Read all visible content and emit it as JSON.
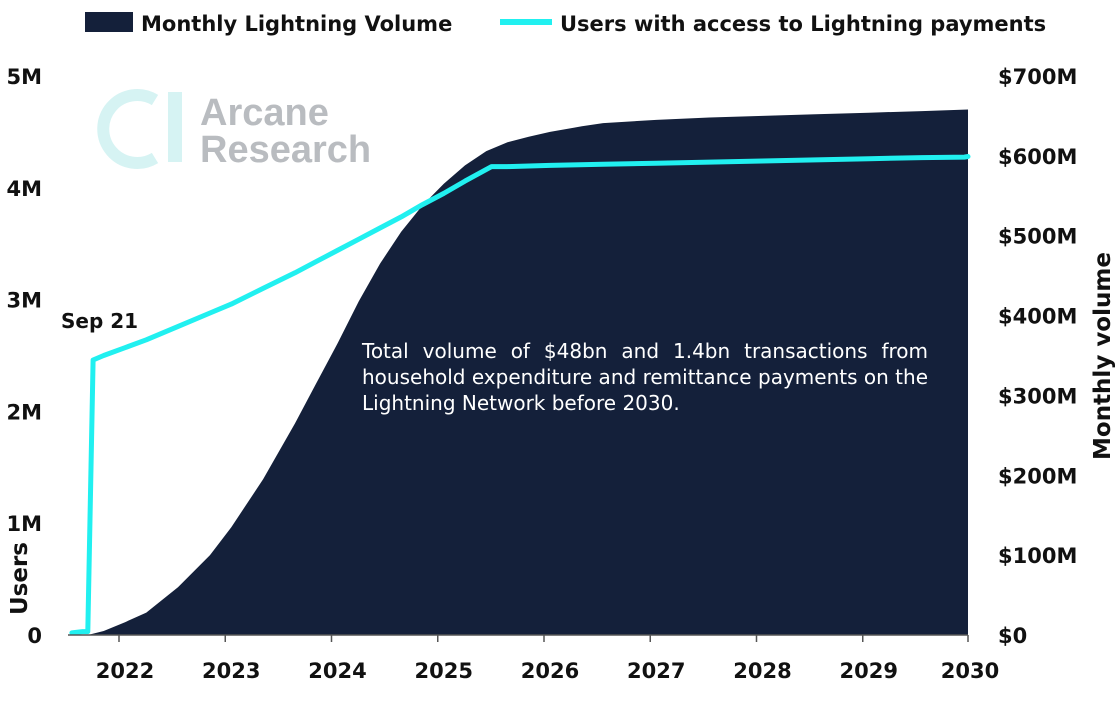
{
  "chart_data": {
    "type": "area+line",
    "legend": [
      {
        "name": "Monthly Lightning Volume",
        "type": "area",
        "color": "#14203a"
      },
      {
        "name": "Users with access to Lightning payments",
        "type": "line",
        "color": "#21f0f0"
      }
    ],
    "x_ticks": [
      "2022",
      "2023",
      "2024",
      "2025",
      "2026",
      "2027",
      "2028",
      "2029",
      "2030"
    ],
    "x_range": [
      2021.5,
      2030.0
    ],
    "left_axis": {
      "title": "Users",
      "range": [
        0,
        5000000
      ],
      "ticks": [
        {
          "v": 0,
          "label": "0"
        },
        {
          "v": 1000000,
          "label": "1M"
        },
        {
          "v": 2000000,
          "label": "2M"
        },
        {
          "v": 3000000,
          "label": "3M"
        },
        {
          "v": 4000000,
          "label": "4M"
        },
        {
          "v": 5000000,
          "label": "5M"
        }
      ]
    },
    "right_axis": {
      "title": "Monthly volume",
      "range": [
        0,
        700
      ],
      "ticks": [
        {
          "v": 0,
          "label": "$0"
        },
        {
          "v": 100,
          "label": "$100M"
        },
        {
          "v": 200,
          "label": "$200M"
        },
        {
          "v": 300,
          "label": "$300M"
        },
        {
          "v": 400,
          "label": "$400M"
        },
        {
          "v": 500,
          "label": "$500M"
        },
        {
          "v": 600,
          "label": "$600M"
        },
        {
          "v": 700,
          "label": "$700M"
        }
      ]
    },
    "series": [
      {
        "name": "Monthly Lightning Volume",
        "axis": "right",
        "unit": "$M",
        "x": [
          2021.65,
          2021.8,
          2022.0,
          2022.2,
          2022.5,
          2022.8,
          2023.0,
          2023.3,
          2023.6,
          2023.8,
          2024.0,
          2024.2,
          2024.4,
          2024.6,
          2024.8,
          2025.0,
          2025.2,
          2025.4,
          2025.6,
          2025.8,
          2026.0,
          2026.3,
          2026.5,
          2027.0,
          2027.5,
          2028.0,
          2028.5,
          2029.0,
          2029.5,
          2030.0
        ],
        "y": [
          0,
          5,
          16,
          28,
          60,
          100,
          135,
          195,
          265,
          315,
          365,
          418,
          465,
          505,
          538,
          565,
          588,
          606,
          617,
          624,
          630,
          637,
          641,
          645,
          648,
          650,
          652,
          654,
          656,
          658
        ]
      },
      {
        "name": "Users with access to Lightning payments",
        "axis": "left",
        "unit": "users",
        "x": [
          2021.5,
          2021.6,
          2021.65,
          2021.7,
          2021.8,
          2022.0,
          2022.2,
          2022.5,
          2022.8,
          2023.0,
          2023.3,
          2023.6,
          2023.8,
          2024.0,
          2024.2,
          2024.4,
          2024.6,
          2024.8,
          2025.0,
          2025.2,
          2025.45,
          2025.6,
          2026.0,
          2026.5,
          2027.0,
          2027.5,
          2028.0,
          2028.5,
          2029.0,
          2029.5,
          2029.9,
          2030.0
        ],
        "y": [
          20000,
          30000,
          30000,
          2460000,
          2500000,
          2570000,
          2640000,
          2760000,
          2880000,
          2960000,
          3100000,
          3240000,
          3340000,
          3440000,
          3540000,
          3640000,
          3740000,
          3850000,
          3950000,
          4060000,
          4190000,
          4190000,
          4200000,
          4210000,
          4220000,
          4230000,
          4240000,
          4250000,
          4260000,
          4270000,
          4275000,
          4280000
        ]
      }
    ],
    "annotations": {
      "callout": "Sep 21",
      "note": "Total volume of $48bn and 1.4bn transactions from household expenditure and remittance payments on the Lightning Network before 2030."
    }
  },
  "watermark": {
    "line1": "Arcane",
    "line2": "Research"
  }
}
